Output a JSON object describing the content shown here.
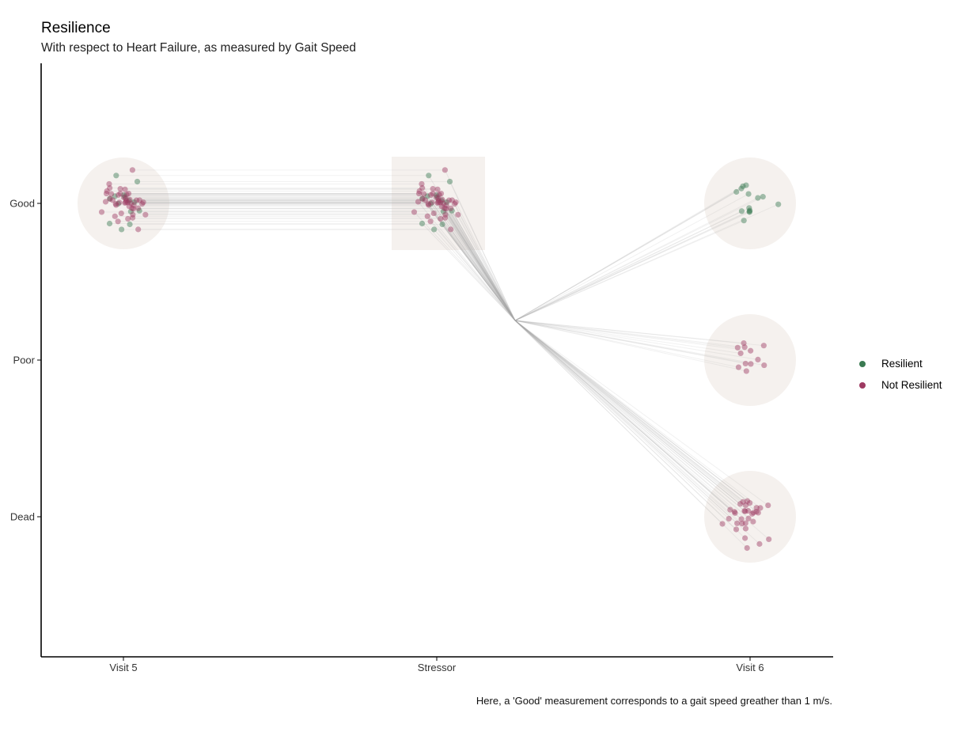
{
  "chart_data": {
    "type": "scatter",
    "title": "Resilience",
    "subtitle": "With respect to Heart Failure, as measured by Gait Speed",
    "caption": "Here, a 'Good' measurement corresponds to a gait speed greather than 1 m/s.",
    "x_categories": [
      "Visit 5",
      "Stressor",
      "Visit 6"
    ],
    "y_categories": [
      "Good",
      "Poor",
      "Dead"
    ],
    "grid": false,
    "legend_position": "right",
    "series": [
      {
        "name": "Resilient",
        "color": "#3a7a52",
        "counts": {
          "Visit 5": 14,
          "Stressor": 14,
          "Visit 6": {
            "Good": 14,
            "Poor": 0,
            "Dead": 0
          }
        }
      },
      {
        "name": "Not Resilient",
        "color": "#9e3a62",
        "counts": {
          "Visit 5": 44,
          "Stressor": 44,
          "Visit 6": {
            "Good": 0,
            "Poor": 12,
            "Dead": 32
          }
        }
      }
    ],
    "groups": [
      {
        "x": "Visit 5",
        "y": "Good",
        "shape": "circle"
      },
      {
        "x": "Stressor",
        "y": "Good",
        "shape": "square"
      },
      {
        "x": "Visit 6",
        "y": "Good",
        "shape": "circle"
      },
      {
        "x": "Visit 6",
        "y": "Poor",
        "shape": "circle"
      },
      {
        "x": "Visit 6",
        "y": "Dead",
        "shape": "circle"
      }
    ]
  }
}
